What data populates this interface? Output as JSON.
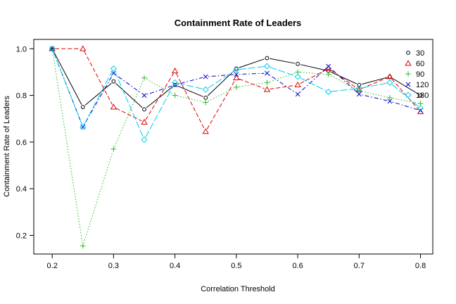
{
  "chart_data": {
    "type": "line",
    "title": "Containment Rate of Leaders",
    "xlabel": "Correlation Threshold",
    "ylabel": "Containment Rate of Leaders",
    "x": [
      0.2,
      0.25,
      0.3,
      0.35,
      0.4,
      0.45,
      0.5,
      0.55,
      0.6,
      0.65,
      0.7,
      0.75,
      0.8
    ],
    "xlim": [
      0.17,
      0.82
    ],
    "ylim": [
      0.12,
      1.04
    ],
    "xticks": [
      "0.2",
      "0.3",
      "0.4",
      "0.5",
      "0.6",
      "0.7",
      "0.8"
    ],
    "yticks": [
      "0.2",
      "0.4",
      "0.6",
      "0.8",
      "1.0"
    ],
    "legend_position": "top-right",
    "series": [
      {
        "name": "30",
        "color": "#000000",
        "marker": "circle",
        "dash": "solid",
        "values": [
          1.0,
          0.75,
          0.86,
          0.74,
          0.845,
          0.79,
          0.915,
          0.96,
          0.935,
          0.905,
          0.845,
          0.88,
          0.8
        ]
      },
      {
        "name": "60",
        "color": "#df0000",
        "marker": "triangle",
        "dash": "dashed",
        "values": [
          1.0,
          1.0,
          0.75,
          0.685,
          0.905,
          0.645,
          0.875,
          0.825,
          0.845,
          0.915,
          0.825,
          0.88,
          0.73
        ]
      },
      {
        "name": "90",
        "color": "#22bb22",
        "marker": "plus",
        "dash": "dotted",
        "values": [
          1.0,
          0.155,
          0.57,
          0.875,
          0.8,
          0.77,
          0.835,
          0.855,
          0.9,
          0.89,
          0.82,
          0.79,
          0.765
        ]
      },
      {
        "name": "120",
        "color": "#0000cc",
        "marker": "cross",
        "dash": "dotdash",
        "values": [
          1.0,
          0.665,
          0.895,
          0.8,
          0.845,
          0.88,
          0.89,
          0.895,
          0.805,
          0.925,
          0.805,
          0.775,
          0.735
        ]
      },
      {
        "name": "180",
        "color": "#00ccee",
        "marker": "diamond",
        "dash": "longdash",
        "values": [
          1.0,
          0.665,
          0.915,
          0.61,
          0.855,
          0.825,
          0.91,
          0.925,
          0.88,
          0.815,
          0.83,
          0.855,
          0.745
        ]
      }
    ]
  }
}
